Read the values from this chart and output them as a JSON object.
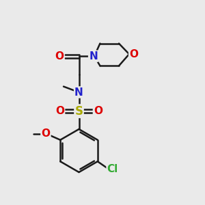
{
  "bg": "#eaeaea",
  "bc": "#1a1a1a",
  "lw": 1.8,
  "atom_colors": {
    "O": "#dd0000",
    "N": "#2222cc",
    "S": "#aaaa00",
    "Cl": "#33aa33"
  },
  "fs": 10,
  "fig_w": 3.0,
  "fig_h": 3.0,
  "dpi": 100
}
